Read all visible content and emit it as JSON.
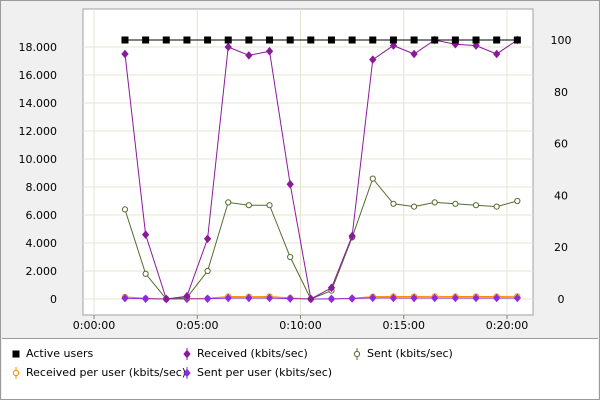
{
  "chart_data": {
    "type": "line",
    "x": [
      "0:01:30",
      "0:02:30",
      "0:03:30",
      "0:04:30",
      "0:05:30",
      "0:06:30",
      "0:07:30",
      "0:08:30",
      "0:09:30",
      "0:10:30",
      "0:11:30",
      "0:12:30",
      "0:13:30",
      "0:14:30",
      "0:15:30",
      "0:16:30",
      "0:17:30",
      "0:18:30",
      "0:19:30",
      "0:20:30"
    ],
    "x_ticks": [
      "0:00:00",
      "0:05:00",
      "0:10:00",
      "0:15:00",
      "0:20:00"
    ],
    "xlim": [
      "0:00:00",
      "0:21:00"
    ],
    "y_left_ticks": [
      "0",
      "2.000",
      "4.000",
      "6.000",
      "8.000",
      "10.000",
      "12.000",
      "14.000",
      "16.000",
      "18.000"
    ],
    "y_left_lim": [
      0,
      19000
    ],
    "y_right_ticks": [
      "0",
      "20",
      "40",
      "60",
      "80",
      "100"
    ],
    "y_right_lim": [
      0,
      105
    ],
    "grid": true,
    "legend_position": "bottom",
    "series": [
      {
        "name": "Active users",
        "axis": "right",
        "color": "#000000",
        "marker": "square",
        "values": [
          100,
          100,
          100,
          100,
          100,
          100,
          100,
          100,
          100,
          100,
          100,
          100,
          100,
          100,
          100,
          100,
          100,
          100,
          100,
          100
        ]
      },
      {
        "name": "Received (kbits/sec)",
        "axis": "left",
        "color": "#8b1a9b",
        "marker": "diamond",
        "values": [
          17500,
          4600,
          0,
          200,
          4300,
          18000,
          17400,
          17700,
          8200,
          0,
          800,
          4500,
          17100,
          18100,
          17500,
          18500,
          18200,
          18100,
          17500,
          18500
        ]
      },
      {
        "name": "Sent (kbits/sec)",
        "axis": "left",
        "color": "#556b2f",
        "marker": "circle",
        "values": [
          6400,
          1800,
          0,
          100,
          2000,
          6900,
          6700,
          6700,
          3000,
          0,
          600,
          4400,
          8600,
          6800,
          6600,
          6900,
          6800,
          6700,
          6600,
          7000
        ]
      },
      {
        "name": "Received per user (kbits/sec)",
        "axis": "left",
        "color": "#ff8c00",
        "marker": "circle",
        "values": [
          150,
          50,
          0,
          20,
          50,
          180,
          170,
          180,
          80,
          0,
          10,
          50,
          170,
          180,
          180,
          190,
          180,
          180,
          180,
          190
        ]
      },
      {
        "name": "Sent per user (kbits/sec)",
        "axis": "left",
        "color": "#8a2be2",
        "marker": "diamond",
        "values": [
          60,
          20,
          0,
          10,
          20,
          70,
          70,
          70,
          30,
          0,
          10,
          40,
          80,
          70,
          70,
          70,
          70,
          70,
          70,
          70
        ]
      }
    ]
  }
}
